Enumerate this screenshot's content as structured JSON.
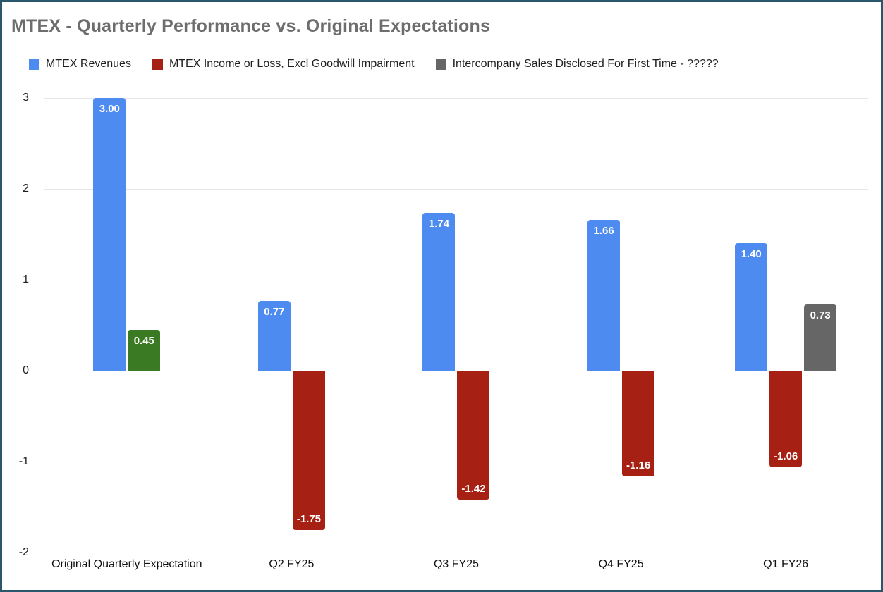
{
  "chart_data": {
    "type": "bar",
    "title": "MTEX - Quarterly Performance vs. Original Expectations",
    "categories": [
      "Original Quarterly Expectation",
      "Q2 FY25",
      "Q3 FY25",
      "Q4 FY25",
      "Q1 FY26"
    ],
    "series": [
      {
        "name": "MTEX Revenues",
        "color": "#4d8bf0",
        "values": [
          3.0,
          0.77,
          1.74,
          1.66,
          1.4
        ]
      },
      {
        "name": "MTEX Income or Loss, Excl Goodwill Impairment",
        "color": "#a62014",
        "values": [
          0.45,
          -1.75,
          -1.42,
          -1.16,
          -1.06
        ],
        "point_colors": [
          "#3a7a22",
          null,
          null,
          null,
          null
        ]
      },
      {
        "name": "Intercompany Sales Disclosed For First Time - ?????",
        "color": "#666666",
        "values": [
          null,
          null,
          null,
          null,
          0.73
        ]
      }
    ],
    "ylim": [
      -2,
      3
    ],
    "yticks": [
      3,
      2,
      1,
      0,
      -1,
      -2
    ],
    "legend_position": "top",
    "grid": true,
    "value_label_format": "0.00",
    "value_labels": [
      "3.00",
      "0.45",
      "0.77",
      "-1.75",
      "1.74",
      "-1.42",
      "1.66",
      "-1.16",
      "1.40",
      "-1.06",
      "0.73"
    ]
  },
  "frame": {
    "border_color": "#29586c",
    "background": "#ffffff",
    "title_color": "#6d6d6d"
  }
}
